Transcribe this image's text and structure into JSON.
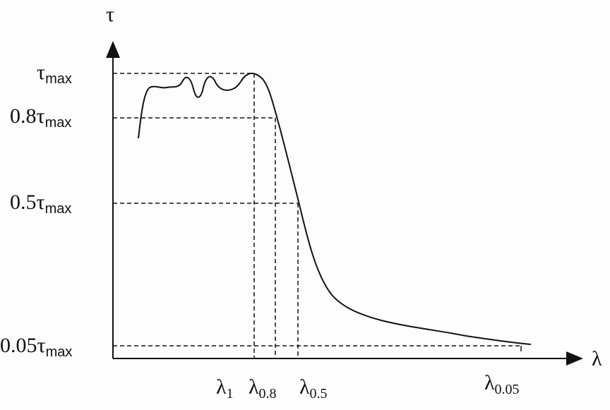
{
  "axes": {
    "y_symbol": "τ",
    "x_symbol": "λ"
  },
  "y_levels": [
    {
      "id": "max",
      "coef": "",
      "sym": "τ",
      "sub": "max"
    },
    {
      "id": "p08",
      "coef": "0.8",
      "sym": "τ",
      "sub": "max"
    },
    {
      "id": "p05",
      "coef": "0.5",
      "sym": "τ",
      "sub": "max"
    },
    {
      "id": "p005",
      "coef": "0.05",
      "sym": "τ",
      "sub": "max"
    }
  ],
  "x_markers": [
    {
      "id": "l1",
      "sym": "λ",
      "sub": "1"
    },
    {
      "id": "l08",
      "sym": "λ",
      "sub": "0.8"
    },
    {
      "id": "l05",
      "sym": "λ",
      "sub": "0.5"
    },
    {
      "id": "l005",
      "sym": "λ",
      "sub": "0.05"
    }
  ],
  "colors": {
    "ink": "#111111",
    "background": "#fdfdfd"
  }
}
